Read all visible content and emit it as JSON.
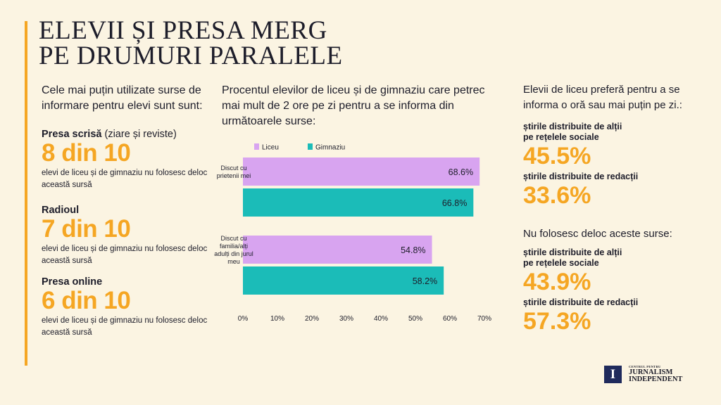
{
  "title": {
    "line1": "ELEVII ȘI PRESA MERG",
    "line2": "PE DRUMURI PARALELE"
  },
  "colors": {
    "accent": "#f5a623",
    "liceu": "#d8a4f0",
    "gimnaziu": "#1bbcb8",
    "background": "#fbf4e2"
  },
  "left": {
    "intro": "Cele mai puțin utilizate surse de informare pentru elevi sunt sunt:",
    "stats": [
      {
        "label_bold": "Presa scrisă",
        "label_rest": " (ziare și reviste)",
        "value": "8 din 10",
        "desc": "elevi de liceu și de gimnaziu nu folosesc deloc această sursă"
      },
      {
        "label_bold": "Radioul",
        "label_rest": "",
        "value": "7 din 10",
        "desc": "elevi de liceu și de gimnaziu nu folosesc deloc această sursă"
      },
      {
        "label_bold": "Presa online",
        "label_rest": "",
        "value": "6 din 10",
        "desc": "elevi de liceu și de gimnaziu nu folosesc deloc această sursă"
      }
    ]
  },
  "middle": {
    "intro": "Procentul elevilor de liceu și de gimnaziu care petrec mai mult de 2 ore pe zi pentru a se informa din următoarele surse:"
  },
  "chart_data": {
    "type": "bar",
    "orientation": "horizontal",
    "categories": [
      [
        "Discut cu",
        "prietenii mei"
      ],
      [
        "Discut cu",
        "familia/alți",
        "adulți din jurul",
        "meu"
      ]
    ],
    "series": [
      {
        "name": "Liceu",
        "color": "#d8a4f0",
        "values": [
          68.6,
          54.8
        ],
        "labels": [
          "68.6%",
          "54.8%"
        ]
      },
      {
        "name": "Gimnaziu",
        "color": "#1bbcb8",
        "values": [
          66.8,
          58.2
        ],
        "labels": [
          "66.8%",
          "58.2%"
        ]
      }
    ],
    "xlim": [
      0,
      70
    ],
    "xticks": [
      "0%",
      "10%",
      "20%",
      "30%",
      "40%",
      "50%",
      "60%",
      "70%"
    ],
    "legend_position": "top-left",
    "grid": false
  },
  "right": {
    "block1": {
      "intro": "Elevii de liceu preferă pentru a se informa o oră sau mai puțin pe zi.:",
      "items": [
        {
          "label_line1": "știrile distribuite de alții",
          "label_line2": "pe rețelele sociale",
          "value": "45.5%"
        },
        {
          "label_line1": "știrile distribuite de redacții",
          "label_line2": "",
          "value": "33.6%"
        }
      ]
    },
    "block2": {
      "intro": "Nu folosesc deloc aceste surse:",
      "items": [
        {
          "label_line1": "știrile distribuite de alții",
          "label_line2": "pe rețelele sociale",
          "value": "43.9%"
        },
        {
          "label_line1": "știrile distribuite de redacții",
          "label_line2": "",
          "value": "57.3%"
        }
      ]
    }
  },
  "logo": {
    "mark": "I",
    "small": "CENTRUL PENTRU",
    "line1": "JURNALISM",
    "line2": "INDEPENDENT"
  }
}
